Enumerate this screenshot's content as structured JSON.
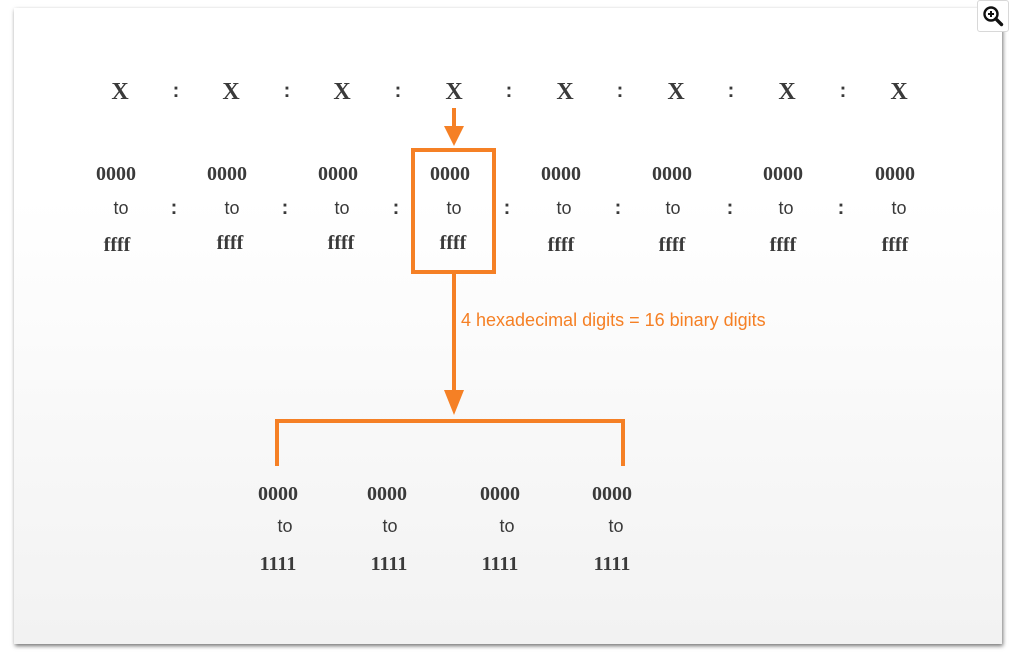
{
  "groups": [
    {
      "label": "X",
      "from": "0000",
      "to_word": "to",
      "to": "ffff"
    },
    {
      "label": "X",
      "from": "0000",
      "to_word": "to",
      "to": "ffff"
    },
    {
      "label": "X",
      "from": "0000",
      "to_word": "to",
      "to": "ffff"
    },
    {
      "label": "X",
      "from": "0000",
      "to_word": "to",
      "to": "ffff"
    },
    {
      "label": "X",
      "from": "0000",
      "to_word": "to",
      "to": "ffff"
    },
    {
      "label": "X",
      "from": "0000",
      "to_word": "to",
      "to": "ffff"
    },
    {
      "label": "X",
      "from": "0000",
      "to_word": "to",
      "to": "ffff"
    },
    {
      "label": "X",
      "from": "0000",
      "to_word": "to",
      "to": "ffff"
    }
  ],
  "separator": ":",
  "annotation": "4 hexadecimal digits = 16 binary digits",
  "binary_groups": [
    {
      "from": "0000",
      "to_word": "to",
      "to": "1111"
    },
    {
      "from": "0000",
      "to_word": "to",
      "to": "1111"
    },
    {
      "from": "0000",
      "to_word": "to",
      "to": "1111"
    },
    {
      "from": "0000",
      "to_word": "to",
      "to": "1111"
    }
  ],
  "colors": {
    "accent": "#f58025",
    "text": "#3a3a3a"
  },
  "toolbar": {
    "zoom_icon": "zoom-in-icon"
  }
}
